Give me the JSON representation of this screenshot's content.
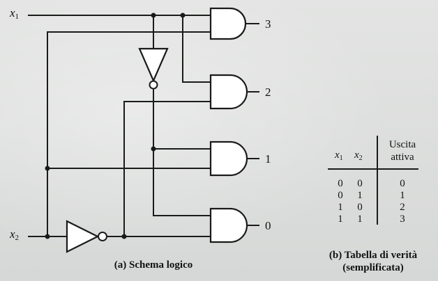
{
  "inputs": {
    "x1": {
      "name": "x",
      "sub": "1"
    },
    "x2": {
      "name": "x",
      "sub": "2"
    }
  },
  "outputs": [
    "3",
    "2",
    "1",
    "0"
  ],
  "captions": {
    "schematic": "(a) Schema logico",
    "truth_table_line1": "(b) Tabella di verità",
    "truth_table_line2": "(semplificata)"
  },
  "truth_table": {
    "headers": {
      "x1": {
        "name": "x",
        "sub": "1"
      },
      "x2": {
        "name": "x",
        "sub": "2"
      },
      "output_line1": "Uscita",
      "output_line2": "attiva"
    },
    "rows": [
      {
        "x1": "0",
        "x2": "0",
        "out": "0"
      },
      {
        "x1": "0",
        "x2": "1",
        "out": "1"
      },
      {
        "x1": "1",
        "x2": "0",
        "out": "2"
      },
      {
        "x1": "1",
        "x2": "1",
        "out": "3"
      }
    ]
  }
}
